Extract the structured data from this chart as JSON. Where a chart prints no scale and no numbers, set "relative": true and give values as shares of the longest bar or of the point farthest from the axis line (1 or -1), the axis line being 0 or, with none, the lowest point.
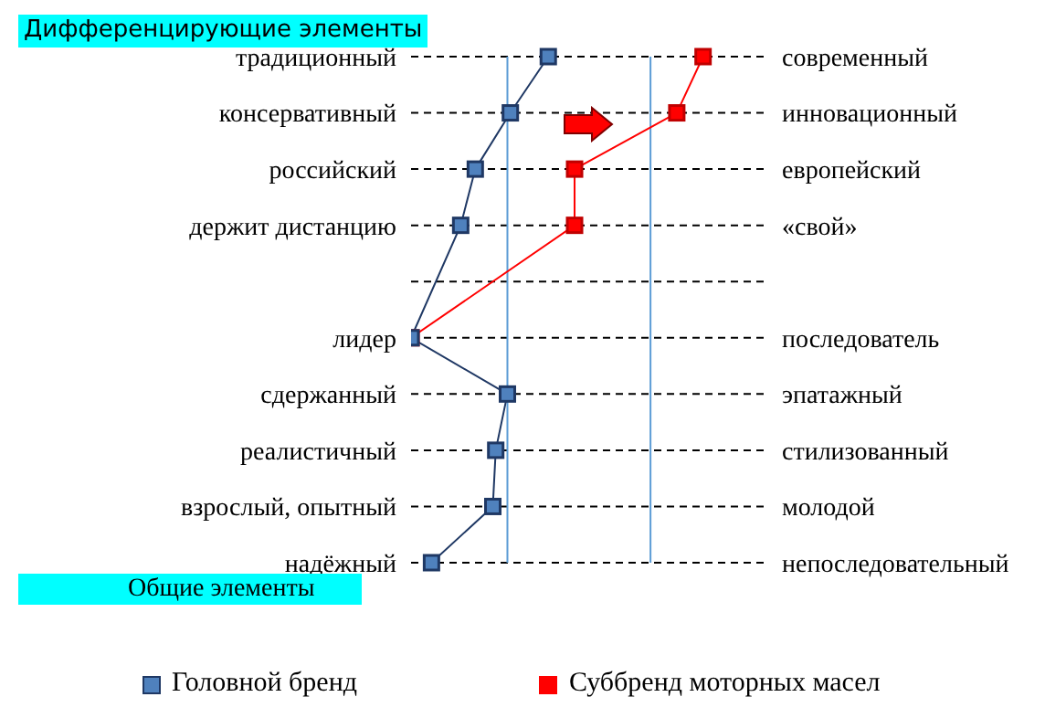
{
  "chart_data": {
    "type": "line",
    "relative": true,
    "title": "Дифференцирующие элементы",
    "categories": [
      "традиционный",
      "консервативный",
      "российский",
      "держит дистанцию",
      null,
      "лидер",
      "сдержанный",
      "реалистичный",
      "взрослый, опытный",
      "надёжный"
    ],
    "y2_categories": [
      "современный",
      "инновационный",
      "европейский",
      "«свой»",
      null,
      "последователь",
      "эпатажный",
      "стилизованный",
      "молодой",
      "непоследовательный"
    ],
    "series": [
      {
        "name": "Головной бренд",
        "color": "#1f3864",
        "values": [
          0.47,
          0.34,
          0.22,
          0.17,
          null,
          0,
          0.33,
          0.29,
          0.28,
          0.07
        ]
      },
      {
        "name": "Суббренд моторных масел",
        "color": "#ff0000",
        "values": [
          1,
          0.91,
          0.56,
          0.56,
          null,
          0,
          null,
          null,
          null,
          null
        ]
      }
    ],
    "ref_lines": [
      {
        "axis": "x",
        "value": 0.33,
        "color": "#5b9bd5"
      },
      {
        "axis": "x",
        "value": 0.82,
        "color": "#5b9bd5"
      }
    ],
    "annotations": [
      "Общие элементы"
    ],
    "grid": "y",
    "marker": "square",
    "legend": "bottom",
    "orientation": "horizontal"
  }
}
